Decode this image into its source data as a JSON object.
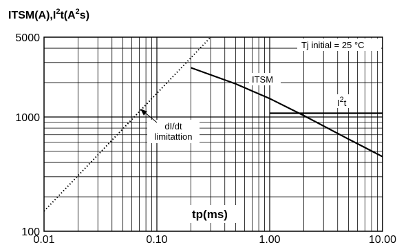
{
  "chart_data": {
    "type": "line",
    "title": "",
    "ylabel_parts": [
      "ITSM(A),I",
      "2",
      "t(A",
      "2",
      "s)"
    ],
    "xlabel": "tp(ms)",
    "x_scale": "log",
    "y_scale": "log",
    "xlim": [
      0.01,
      10
    ],
    "ylim": [
      100,
      5000
    ],
    "x_ticks": [
      0.01,
      0.1,
      1,
      10
    ],
    "x_tick_labels": [
      "0.01",
      "0.10",
      "1.00",
      "10.00"
    ],
    "y_ticks": [
      100,
      1000,
      5000
    ],
    "y_tick_labels": [
      "100",
      "1000",
      "5000"
    ],
    "grid": true,
    "condition": "Tj initial = 25 °C",
    "series": [
      {
        "name": "ITSM",
        "style": "solid",
        "x": [
          0.2,
          0.5,
          1,
          2,
          5,
          10
        ],
        "y": [
          2700,
          1950,
          1450,
          1030,
          640,
          450
        ]
      },
      {
        "name": "I2t",
        "label_parts": [
          "I",
          "2",
          "t"
        ],
        "style": "solid",
        "x": [
          1,
          10
        ],
        "y": [
          1080,
          1080
        ]
      },
      {
        "name": "dI/dt limitattion",
        "label_lines": [
          "dI/dt",
          "limitattion"
        ],
        "style": "dotted",
        "x": [
          0.01,
          0.3
        ],
        "y": [
          150,
          5000
        ]
      }
    ]
  }
}
